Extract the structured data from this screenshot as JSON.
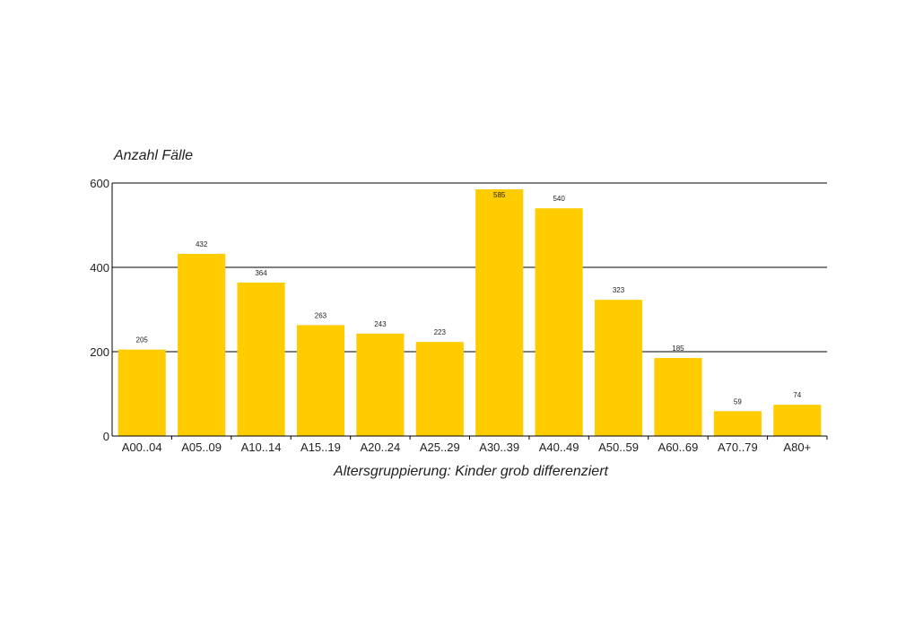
{
  "chart_data": {
    "type": "bar",
    "title": "",
    "ylabel": "Anzahl Fälle",
    "xlabel": "Altersgruppierung: Kinder grob differenziert",
    "categories": [
      "A00..04",
      "A05..09",
      "A10..14",
      "A15..19",
      "A20..24",
      "A25..29",
      "A30..39",
      "A40..49",
      "A50..59",
      "A60..69",
      "A70..79",
      "A80+"
    ],
    "values": [
      205,
      432,
      364,
      263,
      243,
      223,
      585,
      540,
      323,
      185,
      59,
      74
    ],
    "ylim": [
      0,
      600
    ],
    "yticks": [
      0,
      200,
      400,
      600
    ],
    "grid": true,
    "legend": "none",
    "colors": {
      "bar": "#ffcc00",
      "grid": "#000000",
      "text": "#222222"
    }
  }
}
